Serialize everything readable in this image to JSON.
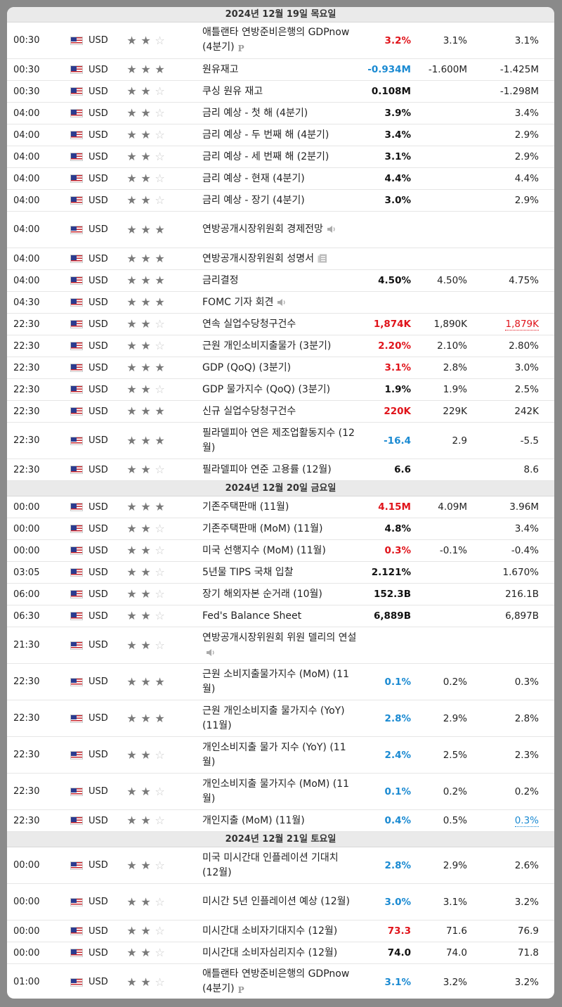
{
  "days": [
    {
      "header": "2024년 12월 19일 목요일",
      "rows": [
        {
          "time": "00:30",
          "cur": "USD",
          "stars": 2,
          "event": "애틀랜타 연방준비은행의 GDPnow (4분기)",
          "icon": "p",
          "actual": "3.2%",
          "actual_color": "red",
          "forecast": "3.1%",
          "previous": "3.1%",
          "prev_style": "",
          "tall": true
        },
        {
          "time": "00:30",
          "cur": "USD",
          "stars": 3,
          "event": "원유재고",
          "icon": "",
          "actual": "-0.934M",
          "actual_color": "blue",
          "forecast": "-1.600M",
          "previous": "-1.425M",
          "prev_style": "",
          "tall": false
        },
        {
          "time": "00:30",
          "cur": "USD",
          "stars": 2,
          "event": "쿠싱 원유 재고",
          "icon": "",
          "actual": "0.108M",
          "actual_color": "black",
          "forecast": "",
          "previous": "-1.298M",
          "prev_style": "",
          "tall": false
        },
        {
          "time": "04:00",
          "cur": "USD",
          "stars": 2,
          "event": "금리 예상 - 첫 해 (4분기)",
          "icon": "",
          "actual": "3.9%",
          "actual_color": "black",
          "forecast": "",
          "previous": "3.4%",
          "prev_style": "",
          "tall": false
        },
        {
          "time": "04:00",
          "cur": "USD",
          "stars": 2,
          "event": "금리 예상 - 두 번째 해 (4분기)",
          "icon": "",
          "actual": "3.4%",
          "actual_color": "black",
          "forecast": "",
          "previous": "2.9%",
          "prev_style": "",
          "tall": false
        },
        {
          "time": "04:00",
          "cur": "USD",
          "stars": 2,
          "event": "금리 예상 - 세 번째 해 (2분기)",
          "icon": "",
          "actual": "3.1%",
          "actual_color": "black",
          "forecast": "",
          "previous": "2.9%",
          "prev_style": "",
          "tall": false
        },
        {
          "time": "04:00",
          "cur": "USD",
          "stars": 2,
          "event": "금리 예상 - 현재 (4분기)",
          "icon": "",
          "actual": "4.4%",
          "actual_color": "black",
          "forecast": "",
          "previous": "4.4%",
          "prev_style": "",
          "tall": false
        },
        {
          "time": "04:00",
          "cur": "USD",
          "stars": 2,
          "event": "금리 예상 - 장기 (4분기)",
          "icon": "",
          "actual": "3.0%",
          "actual_color": "black",
          "forecast": "",
          "previous": "2.9%",
          "prev_style": "",
          "tall": false
        },
        {
          "time": "04:00",
          "cur": "USD",
          "stars": 3,
          "event": "연방공개시장위원회 경제전망",
          "icon": "speaker",
          "actual": "",
          "actual_color": "black",
          "forecast": "",
          "previous": "",
          "prev_style": "",
          "tall": true
        },
        {
          "time": "04:00",
          "cur": "USD",
          "stars": 3,
          "event": "연방공개시장위원회 성명서",
          "icon": "doc",
          "actual": "",
          "actual_color": "black",
          "forecast": "",
          "previous": "",
          "prev_style": "",
          "tall": false
        },
        {
          "time": "04:00",
          "cur": "USD",
          "stars": 3,
          "event": "금리결정",
          "icon": "",
          "actual": "4.50%",
          "actual_color": "black",
          "forecast": "4.50%",
          "previous": "4.75%",
          "prev_style": "",
          "tall": false
        },
        {
          "time": "04:30",
          "cur": "USD",
          "stars": 3,
          "event": "FOMC 기자 회견",
          "icon": "speaker",
          "actual": "",
          "actual_color": "black",
          "forecast": "",
          "previous": "",
          "prev_style": "",
          "tall": false
        },
        {
          "time": "22:30",
          "cur": "USD",
          "stars": 2,
          "event": "연속 실업수당청구건수",
          "icon": "",
          "actual": "1,874K",
          "actual_color": "red",
          "forecast": "1,890K",
          "previous": "1,879K",
          "prev_style": "rev-red",
          "tall": false
        },
        {
          "time": "22:30",
          "cur": "USD",
          "stars": 2,
          "event": "근원 개인소비지출물가 (3분기)",
          "icon": "",
          "actual": "2.20%",
          "actual_color": "red",
          "forecast": "2.10%",
          "previous": "2.80%",
          "prev_style": "",
          "tall": false
        },
        {
          "time": "22:30",
          "cur": "USD",
          "stars": 3,
          "event": "GDP (QoQ) (3분기)",
          "icon": "",
          "actual": "3.1%",
          "actual_color": "red",
          "forecast": "2.8%",
          "previous": "3.0%",
          "prev_style": "",
          "tall": false
        },
        {
          "time": "22:30",
          "cur": "USD",
          "stars": 2,
          "event": "GDP 물가지수 (QoQ) (3분기)",
          "icon": "",
          "actual": "1.9%",
          "actual_color": "black",
          "forecast": "1.9%",
          "previous": "2.5%",
          "prev_style": "",
          "tall": false
        },
        {
          "time": "22:30",
          "cur": "USD",
          "stars": 3,
          "event": "신규 실업수당청구건수",
          "icon": "",
          "actual": "220K",
          "actual_color": "red",
          "forecast": "229K",
          "previous": "242K",
          "prev_style": "",
          "tall": false
        },
        {
          "time": "22:30",
          "cur": "USD",
          "stars": 3,
          "event": "필라델피아 연은 제조업활동지수 (12월)",
          "icon": "",
          "actual": "-16.4",
          "actual_color": "blue",
          "forecast": "2.9",
          "previous": "-5.5",
          "prev_style": "",
          "tall": true
        },
        {
          "time": "22:30",
          "cur": "USD",
          "stars": 2,
          "event": "필라델피아 연준 고용률 (12월)",
          "icon": "",
          "actual": "6.6",
          "actual_color": "black",
          "forecast": "",
          "previous": "8.6",
          "prev_style": "",
          "tall": false
        }
      ]
    },
    {
      "header": "2024년 12월 20일 금요일",
      "rows": [
        {
          "time": "00:00",
          "cur": "USD",
          "stars": 3,
          "event": "기존주택판매 (11월)",
          "icon": "",
          "actual": "4.15M",
          "actual_color": "red",
          "forecast": "4.09M",
          "previous": "3.96M",
          "prev_style": "",
          "tall": false
        },
        {
          "time": "00:00",
          "cur": "USD",
          "stars": 2,
          "event": "기존주택판매 (MoM) (11월)",
          "icon": "",
          "actual": "4.8%",
          "actual_color": "black",
          "forecast": "",
          "previous": "3.4%",
          "prev_style": "",
          "tall": false
        },
        {
          "time": "00:00",
          "cur": "USD",
          "stars": 2,
          "event": "미국 선행지수 (MoM) (11월)",
          "icon": "",
          "actual": "0.3%",
          "actual_color": "red",
          "forecast": "-0.1%",
          "previous": "-0.4%",
          "prev_style": "",
          "tall": false
        },
        {
          "time": "03:05",
          "cur": "USD",
          "stars": 2,
          "event": "5년물 TIPS 국채 입찰",
          "icon": "",
          "actual": "2.121%",
          "actual_color": "black",
          "forecast": "",
          "previous": "1.670%",
          "prev_style": "",
          "tall": false
        },
        {
          "time": "06:00",
          "cur": "USD",
          "stars": 2,
          "event": "장기 해외자본 순거래 (10월)",
          "icon": "",
          "actual": "152.3B",
          "actual_color": "black",
          "forecast": "",
          "previous": "216.1B",
          "prev_style": "",
          "tall": false
        },
        {
          "time": "06:30",
          "cur": "USD",
          "stars": 2,
          "event": "Fed's Balance Sheet",
          "icon": "",
          "actual": "6,889B",
          "actual_color": "black",
          "forecast": "",
          "previous": "6,897B",
          "prev_style": "",
          "tall": false
        },
        {
          "time": "21:30",
          "cur": "USD",
          "stars": 2,
          "event": "연방공개시장위원회 위원 델리의 연설",
          "icon": "speaker",
          "actual": "",
          "actual_color": "black",
          "forecast": "",
          "previous": "",
          "prev_style": "",
          "tall": true
        },
        {
          "time": "22:30",
          "cur": "USD",
          "stars": 3,
          "event": "근원 소비지출물가지수 (MoM) (11월)",
          "icon": "",
          "actual": "0.1%",
          "actual_color": "blue",
          "forecast": "0.2%",
          "previous": "0.3%",
          "prev_style": "",
          "tall": true
        },
        {
          "time": "22:30",
          "cur": "USD",
          "stars": 3,
          "event": "근원 개인소비지출 물가지수 (YoY) (11월)",
          "icon": "",
          "actual": "2.8%",
          "actual_color": "blue",
          "forecast": "2.9%",
          "previous": "2.8%",
          "prev_style": "",
          "tall": true
        },
        {
          "time": "22:30",
          "cur": "USD",
          "stars": 2,
          "event": "개인소비지출 물가 지수 (YoY) (11월)",
          "icon": "",
          "actual": "2.4%",
          "actual_color": "blue",
          "forecast": "2.5%",
          "previous": "2.3%",
          "prev_style": "",
          "tall": true
        },
        {
          "time": "22:30",
          "cur": "USD",
          "stars": 2,
          "event": "개인소비지출 물가지수 (MoM) (11월)",
          "icon": "",
          "actual": "0.1%",
          "actual_color": "blue",
          "forecast": "0.2%",
          "previous": "0.2%",
          "prev_style": "",
          "tall": true
        },
        {
          "time": "22:30",
          "cur": "USD",
          "stars": 2,
          "event": "개인지출 (MoM) (11월)",
          "icon": "",
          "actual": "0.4%",
          "actual_color": "blue",
          "forecast": "0.5%",
          "previous": "0.3%",
          "prev_style": "rev-blue",
          "tall": false
        }
      ]
    },
    {
      "header": "2024년 12월 21일 토요일",
      "rows": [
        {
          "time": "00:00",
          "cur": "USD",
          "stars": 2,
          "event": "미국 미시간대 인플레이션 기대치 (12월)",
          "icon": "",
          "actual": "2.8%",
          "actual_color": "blue",
          "forecast": "2.9%",
          "previous": "2.6%",
          "prev_style": "",
          "tall": true
        },
        {
          "time": "00:00",
          "cur": "USD",
          "stars": 2,
          "event": "미시간 5년 인플레이션 예상 (12월)",
          "icon": "",
          "actual": "3.0%",
          "actual_color": "blue",
          "forecast": "3.1%",
          "previous": "3.2%",
          "prev_style": "",
          "tall": true
        },
        {
          "time": "00:00",
          "cur": "USD",
          "stars": 2,
          "event": "미시간대 소비자기대지수 (12월)",
          "icon": "",
          "actual": "73.3",
          "actual_color": "red",
          "forecast": "71.6",
          "previous": "76.9",
          "prev_style": "",
          "tall": false
        },
        {
          "time": "00:00",
          "cur": "USD",
          "stars": 2,
          "event": "미시간대 소비자심리지수 (12월)",
          "icon": "",
          "actual": "74.0",
          "actual_color": "black",
          "forecast": "74.0",
          "previous": "71.8",
          "prev_style": "",
          "tall": false
        },
        {
          "time": "01:00",
          "cur": "USD",
          "stars": 2,
          "event": "애틀랜타 연방준비은행의 GDPnow (4분기)",
          "icon": "p",
          "actual": "3.1%",
          "actual_color": "blue",
          "forecast": "3.2%",
          "previous": "3.2%",
          "prev_style": "",
          "tall": true
        }
      ]
    }
  ],
  "icons": {
    "flag": "us-flag-icon",
    "star": "star-icon",
    "p": "preliminary-p-icon",
    "speaker": "speaker-icon",
    "doc": "document-icon"
  }
}
